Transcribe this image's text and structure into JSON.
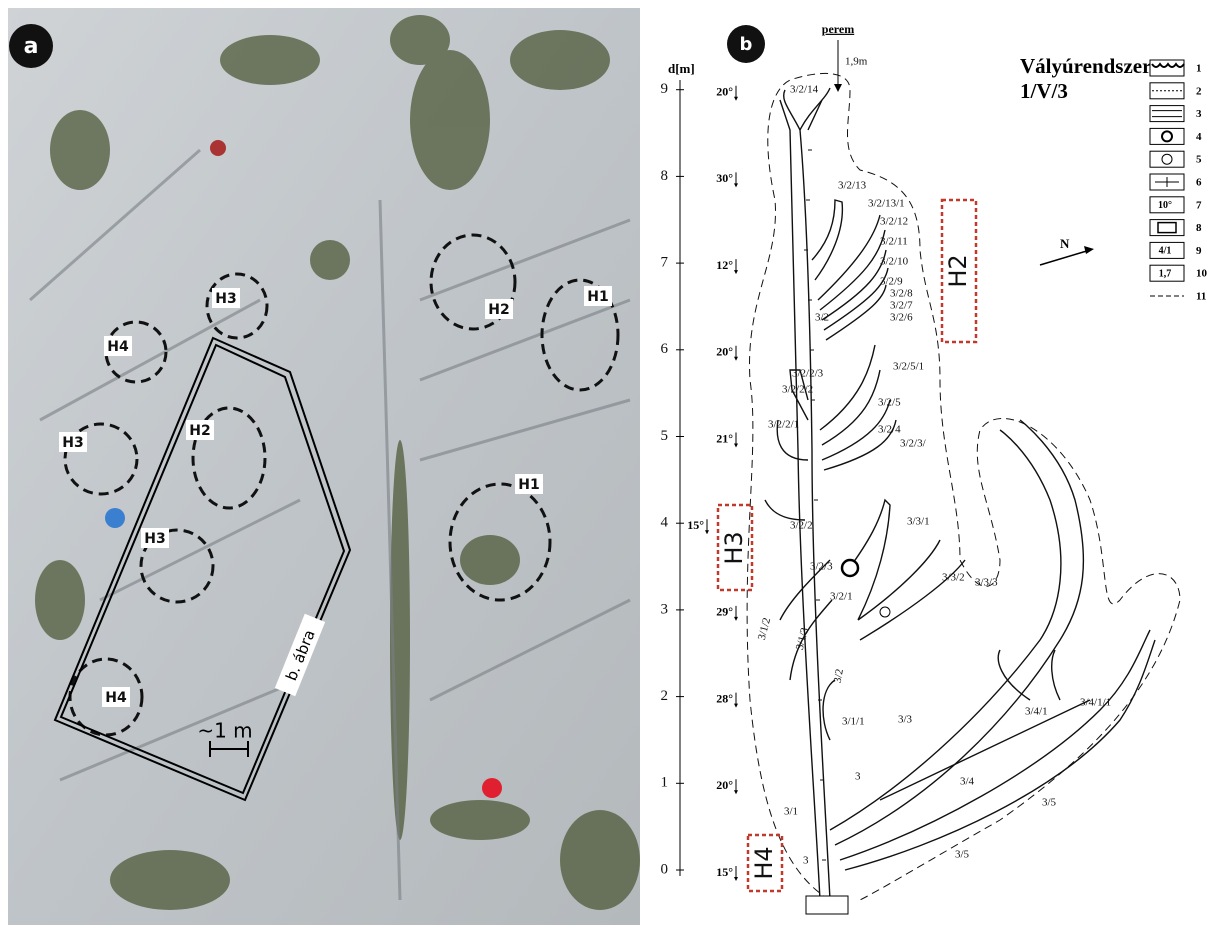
{
  "panel_a": {
    "badge": "a",
    "labels": [
      "H3",
      "H4",
      "H2",
      "H1",
      "H3",
      "H2",
      "H1",
      "H3",
      "H4"
    ],
    "outline_label": "b. ábra",
    "scale": "~1 m"
  },
  "panel_b": {
    "badge": "b",
    "title": [
      "Vályúrendszer:",
      "1/V/3"
    ],
    "perem": "perem",
    "perem_depth": "1,9m",
    "depth_label": "d[m]",
    "depth_ticks": [
      0,
      1,
      2,
      3,
      4,
      5,
      6,
      7,
      8,
      9
    ],
    "slopes": [
      "15°",
      "20°",
      "28°",
      "29°",
      "15°",
      "21°",
      "20°",
      "12°",
      "30°",
      "20°"
    ],
    "highlights": [
      "H2",
      "H3",
      "H4"
    ],
    "north": "N",
    "channel_labels": [
      "3/2/14",
      "3/2/13",
      "3/2/13/1",
      "3/2/12",
      "3/2/11",
      "3/2/10",
      "3/2/9",
      "3/2/8",
      "3/2/7",
      "3/2/6",
      "3/2",
      "3/2/5/1",
      "3/2/2/3",
      "3/2/2/2",
      "3/2/5",
      "3/2/2/1",
      "3/2/4",
      "3/2/3/",
      "3/2/2",
      "3/3/1",
      "3/2/3",
      "3/3/2",
      "3/3/3",
      "3/2/1",
      "3/1/2",
      "3/1/3",
      "3/2",
      "3/4/1/1",
      "3/4/1",
      "3/1/1",
      "3/3",
      "3",
      "3/4",
      "3/1",
      "3/5",
      "3",
      "3/5"
    ],
    "legend": [
      "1",
      "2",
      "3",
      "4",
      "5",
      "6",
      "7",
      "8",
      "9",
      "10",
      "11"
    ],
    "legend_symbols": [
      "10°",
      "4/1",
      "1,7"
    ]
  }
}
